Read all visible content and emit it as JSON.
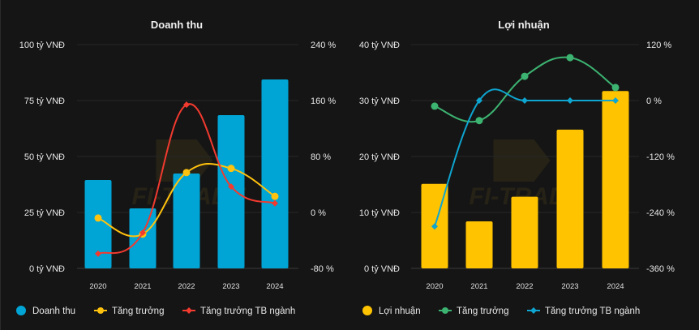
{
  "chart_data": [
    {
      "type": "bar",
      "title": "Doanh thu",
      "categories": [
        "2020",
        "2021",
        "2022",
        "2023",
        "2024"
      ],
      "left_axis": {
        "ticks": [
          "0 tỷ VNĐ",
          "25 tỷ VNĐ",
          "50 tỷ VNĐ",
          "75 tỷ VNĐ",
          "100 tỷ VNĐ"
        ],
        "ylim": [
          0,
          100
        ]
      },
      "right_axis": {
        "ticks": [
          "-80 %",
          "0 %",
          "80 %",
          "160 %",
          "240 %"
        ],
        "ylim": [
          -80,
          240
        ]
      },
      "grid": true,
      "legend_position": "bottom-left",
      "series": [
        {
          "name": "Doanh thu",
          "kind": "bar",
          "axis": "left",
          "color": "#00a5d6",
          "values": [
            39.5,
            26.8,
            42.4,
            68.5,
            84.4
          ]
        },
        {
          "name": "Tăng trưởng",
          "kind": "line",
          "axis": "right",
          "color": "#ffc20e",
          "marker": "circle",
          "values": [
            -8,
            -31,
            57,
            63,
            23
          ]
        },
        {
          "name": "Tăng trưởng TB ngành",
          "kind": "line",
          "axis": "right",
          "color": "#f23a2f",
          "marker": "diamond",
          "values": [
            -59,
            -29,
            154,
            37,
            13
          ]
        }
      ]
    },
    {
      "type": "bar",
      "title": "Lợi nhuận",
      "categories": [
        "2020",
        "2021",
        "2022",
        "2023",
        "2024"
      ],
      "left_axis": {
        "ticks": [
          "0 tỷ VNĐ",
          "10 tỷ VNĐ",
          "20 tỷ VNĐ",
          "30 tỷ VNĐ",
          "40 tỷ VNĐ"
        ],
        "ylim": [
          0,
          40
        ]
      },
      "right_axis": {
        "ticks": [
          "-360 %",
          "-240 %",
          "-120 %",
          "0 %",
          "120 %"
        ],
        "ylim": [
          -360,
          120
        ]
      },
      "grid": true,
      "legend_position": "bottom-left",
      "series": [
        {
          "name": "Lợi nhuận",
          "kind": "bar",
          "axis": "left",
          "color": "#ffc300",
          "values": [
            15.1,
            8.4,
            12.8,
            24.8,
            31.7
          ]
        },
        {
          "name": "Tăng trưởng",
          "kind": "line",
          "axis": "right",
          "color": "#3cb371",
          "marker": "circle",
          "values": [
            -12,
            -43,
            52,
            92,
            28
          ]
        },
        {
          "name": "Tăng trưởng TB ngành",
          "kind": "line",
          "axis": "right",
          "color": "#0ea5d0",
          "marker": "diamond",
          "values": [
            -270,
            0,
            0,
            0,
            0
          ]
        }
      ]
    }
  ]
}
